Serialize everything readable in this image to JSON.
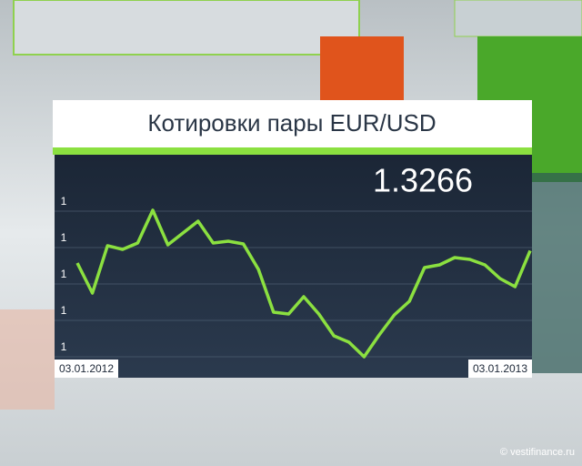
{
  "chart_data": {
    "type": "line",
    "title": "Котировки пары EUR/USD",
    "current_value": "1.3266",
    "source": "© vestifinance.ru",
    "categories": [
      "03.01.2012",
      null,
      null,
      null,
      null,
      null,
      null,
      null,
      null,
      null,
      null,
      null,
      null,
      null,
      null,
      null,
      null,
      null,
      null,
      null,
      null,
      null,
      null,
      null,
      null,
      null,
      null,
      null,
      null,
      null,
      "03.01.2013"
    ],
    "series": [
      {
        "name": "EUR/USD",
        "color": "#8be040",
        "values": [
          1.313,
          1.28,
          1.332,
          1.328,
          1.335,
          1.371,
          1.333,
          1.346,
          1.359,
          1.335,
          1.337,
          1.334,
          1.306,
          1.259,
          1.257,
          1.276,
          1.257,
          1.233,
          1.226,
          1.21,
          1.234,
          1.256,
          1.271,
          1.308,
          1.311,
          1.319,
          1.317,
          1.311,
          1.296,
          1.287,
          1.3266
        ]
      }
    ],
    "ylim": [
      1.21,
      1.43
    ],
    "yticks": [
      {
        "value": 1.22,
        "label": "1"
      },
      {
        "value": 1.26,
        "label": "1"
      },
      {
        "value": 1.3,
        "label": "1"
      },
      {
        "value": 1.34,
        "label": "1"
      },
      {
        "value": 1.38,
        "label": "1"
      }
    ],
    "grid": true
  }
}
